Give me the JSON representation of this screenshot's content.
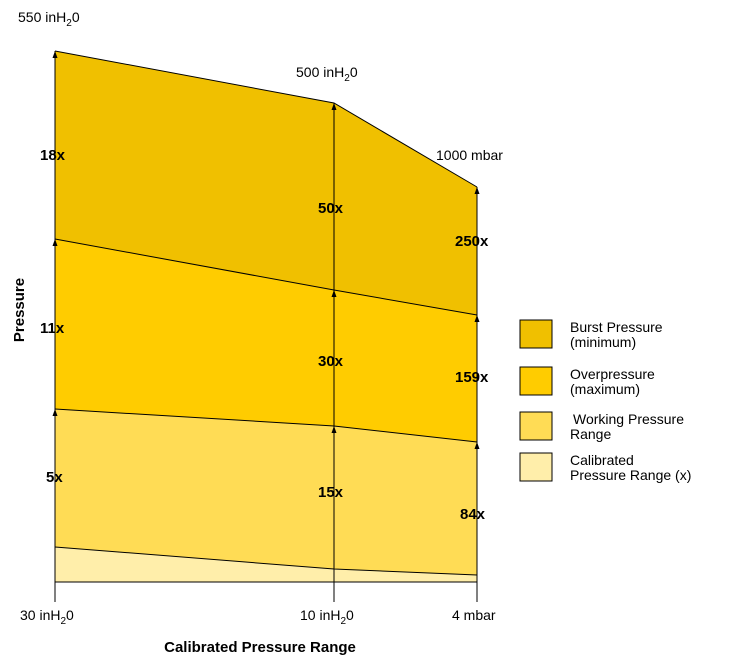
{
  "chart_data": {
    "type": "area",
    "title": "",
    "xlabel": "Calibrated Pressure Range",
    "ylabel": "Pressure",
    "x_ticks": [
      {
        "base": "30 inH",
        "sub": "2",
        "tail": "0"
      },
      {
        "base": "10 inH",
        "sub": "2",
        "tail": "0"
      },
      {
        "base": "4 mbar",
        "sub": "",
        "tail": ""
      }
    ],
    "top_labels": [
      {
        "base": "550 inH",
        "sub": "2",
        "tail": "0"
      },
      {
        "base": "500 inH",
        "sub": "2",
        "tail": "0"
      },
      {
        "base": "1000 mbar",
        "sub": "",
        "tail": ""
      }
    ],
    "series": [
      {
        "name": "Burst Pressure (minimum)",
        "color": "#F0C000",
        "multipliers": [
          "18x",
          "50x",
          "250x"
        ]
      },
      {
        "name": "Overpressure (maximum)",
        "color": "#FFCC00",
        "multipliers": [
          "11x",
          "30x",
          "159x"
        ]
      },
      {
        "name": "Working Pressure Range",
        "color": "#FFDC55",
        "multipliers": [
          "5x",
          "15x",
          "84x"
        ]
      },
      {
        "name": "Calibrated Pressure Range (x)",
        "color": "#FFEEAA",
        "multipliers": []
      }
    ],
    "legend": [
      {
        "line1": "Burst Pressure",
        "line2": "(minimum)",
        "color": "#F0C000"
      },
      {
        "line1": "Overpressure",
        "line2": "(maximum)",
        "color": "#FFCC00"
      },
      {
        "line1": "Working Pressure",
        "line2": "Range",
        "color": "#FFDC55"
      },
      {
        "line1": "Calibrated",
        "line2": "Pressure Range (x)",
        "color": "#FFEEAA"
      }
    ],
    "legend_position": "right",
    "grid": false
  }
}
